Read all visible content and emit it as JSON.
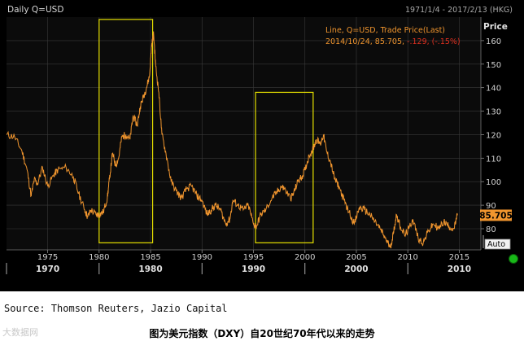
{
  "chart_data": {
    "type": "line",
    "title": "Daily Q=USD",
    "date_range": "1971/1/4 - 2017/2/13 (HKG)",
    "ylabel": "Price",
    "legend": {
      "line1": "Line, Q=USD, Trade Price(Last)",
      "date": "2014/10/24,",
      "value": "85.705,",
      "change": "-.129, (-.15%)"
    },
    "last_value": "85.705",
    "auto_label": "Auto",
    "colors": {
      "line": "#f0952e",
      "box": "#e6e000",
      "change": "#e03020",
      "background": "#000000",
      "grid": "#3a3a3a",
      "indicator": "#18b818"
    },
    "ylim": [
      71,
      170
    ],
    "yticks": [
      80,
      90,
      100,
      110,
      120,
      130,
      140,
      150,
      160
    ],
    "xlim": [
      1971.0,
      2017.1
    ],
    "xticks_minor": [
      "1975",
      "1980",
      "1985",
      "1990",
      "1995",
      "2000",
      "2005",
      "2010",
      "2015"
    ],
    "xticks_major": [
      "1970",
      "1980",
      "1990",
      "2000",
      "2010"
    ],
    "highlight_boxes": [
      {
        "x0": 1980.0,
        "x1": 1985.2,
        "y0": 74,
        "y1": 169
      },
      {
        "x0": 1995.2,
        "x1": 2000.8,
        "y0": 74,
        "y1": 138
      }
    ],
    "series": [
      {
        "name": "Q=USD",
        "x": [
          1971.0,
          1971.8,
          1972.5,
          1973.0,
          1973.4,
          1973.7,
          1974.0,
          1974.5,
          1975.0,
          1975.6,
          1976.0,
          1976.8,
          1977.5,
          1978.0,
          1978.6,
          1978.9,
          1979.2,
          1979.7,
          1980.0,
          1980.4,
          1980.8,
          1981.0,
          1981.3,
          1981.6,
          1981.9,
          1982.2,
          1982.6,
          1983.0,
          1983.3,
          1983.7,
          1984.0,
          1984.3,
          1984.6,
          1984.9,
          1985.1,
          1985.3,
          1985.5,
          1985.8,
          1986.1,
          1986.5,
          1987.0,
          1987.5,
          1988.0,
          1988.5,
          1989.0,
          1989.5,
          1990.0,
          1990.5,
          1990.9,
          1991.3,
          1991.8,
          1992.3,
          1992.7,
          1993.0,
          1993.5,
          1994.0,
          1994.5,
          1995.0,
          1995.3,
          1995.7,
          1996.2,
          1996.8,
          1997.2,
          1997.7,
          1998.0,
          1998.6,
          1998.9,
          1999.3,
          1999.7,
          2000.0,
          2000.4,
          2000.8,
          2001.1,
          2001.5,
          2001.8,
          2002.1,
          2002.5,
          2002.9,
          2003.3,
          2003.8,
          2004.3,
          2004.8,
          2005.3,
          2005.8,
          2006.3,
          2006.8,
          2007.3,
          2007.8,
          2008.3,
          2008.6,
          2008.9,
          2009.2,
          2009.7,
          2010.1,
          2010.5,
          2011.0,
          2011.5,
          2012.0,
          2012.5,
          2013.0,
          2013.5,
          2014.0,
          2014.5,
          2014.82
        ],
        "values": [
          120,
          119,
          113,
          105,
          94,
          101,
          99,
          106,
          98,
          103,
          105,
          106,
          102,
          95,
          88,
          85,
          88,
          86,
          86,
          87,
          93,
          101,
          112,
          107,
          110,
          119,
          120,
          118,
          128,
          124,
          132,
          136,
          140,
          145,
          158,
          163,
          149,
          138,
          120,
          112,
          100,
          96,
          93,
          97,
          98,
          94,
          92,
          86,
          88,
          90,
          88,
          82,
          84,
          92,
          90,
          88,
          90,
          82,
          81,
          86,
          88,
          93,
          95,
          98,
          97,
          93,
          95,
          100,
          102,
          105,
          111,
          114,
          118,
          116,
          120,
          113,
          108,
          101,
          98,
          92,
          87,
          82,
          89,
          88,
          86,
          83,
          80,
          76,
          72,
          78,
          86,
          82,
          77,
          80,
          84,
          76,
          74,
          79,
          82,
          80,
          83,
          81,
          80,
          85.7
        ]
      }
    ]
  },
  "captions": {
    "source": "Source: Thomson Reuters, Jazio Capital",
    "main": "图为美元指数（DXY）自20世纪70年代以来的走势",
    "watermark": "大数据网"
  }
}
